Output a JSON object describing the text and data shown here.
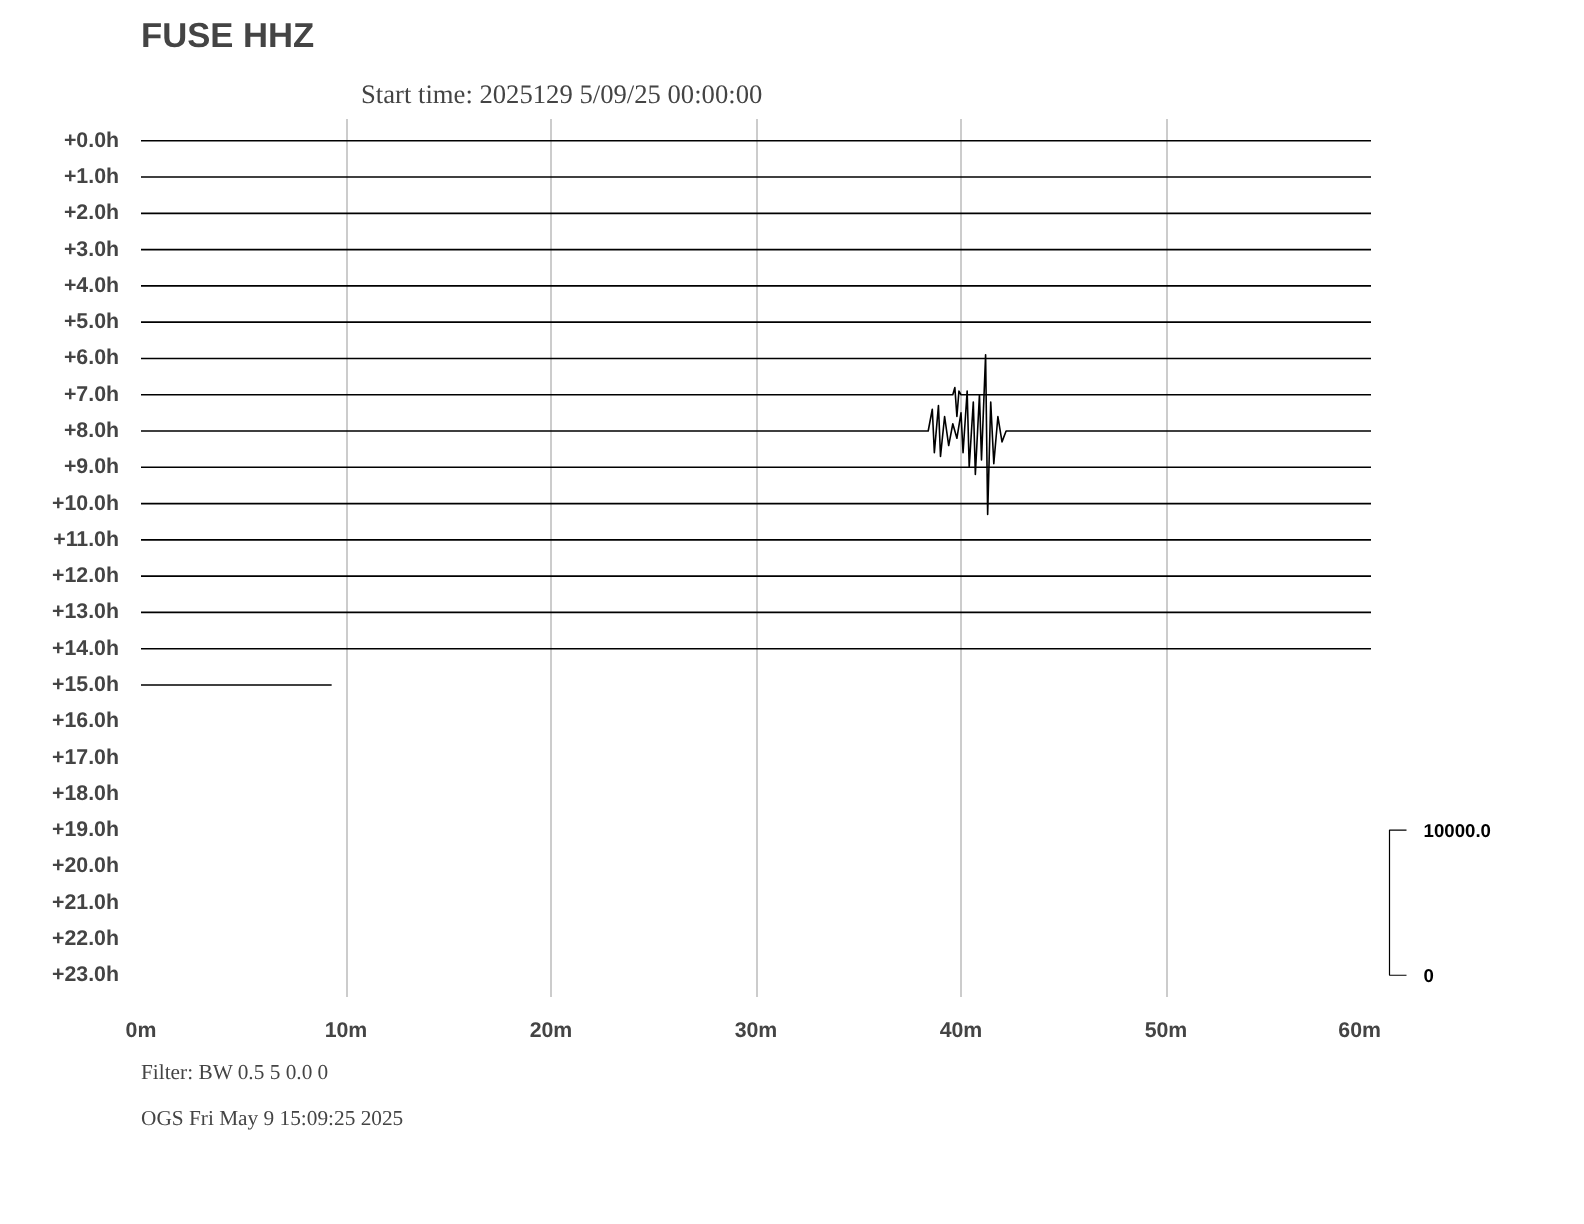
{
  "chart_data": {
    "type": "line",
    "title": "FUSE HHZ",
    "subtitle": "Start time: 2025129  5/09/25 00:00:00",
    "xlim": [
      0,
      60
    ],
    "xticks": [
      {
        "value": 0,
        "label": "0m"
      },
      {
        "value": 10,
        "label": "10m"
      },
      {
        "value": 20,
        "label": "20m"
      },
      {
        "value": 30,
        "label": "30m"
      },
      {
        "value": 40,
        "label": "40m"
      },
      {
        "value": 50,
        "label": "50m"
      },
      {
        "value": 60,
        "label": "60m"
      }
    ],
    "ylim": [
      23.6,
      -0.6
    ],
    "yticks": [
      {
        "value": 0,
        "label": "+0.0h"
      },
      {
        "value": 1,
        "label": "+1.0h"
      },
      {
        "value": 2,
        "label": "+2.0h"
      },
      {
        "value": 3,
        "label": "+3.0h"
      },
      {
        "value": 4,
        "label": "+4.0h"
      },
      {
        "value": 5,
        "label": "+5.0h"
      },
      {
        "value": 6,
        "label": "+6.0h"
      },
      {
        "value": 7,
        "label": "+7.0h"
      },
      {
        "value": 8,
        "label": "+8.0h"
      },
      {
        "value": 9,
        "label": "+9.0h"
      },
      {
        "value": 10,
        "label": "+10.0h"
      },
      {
        "value": 11,
        "label": "+11.0h"
      },
      {
        "value": 12,
        "label": "+12.0h"
      },
      {
        "value": 13,
        "label": "+13.0h"
      },
      {
        "value": 14,
        "label": "+14.0h"
      },
      {
        "value": 15,
        "label": "+15.0h"
      },
      {
        "value": 16,
        "label": "+16.0h"
      },
      {
        "value": 17,
        "label": "+17.0h"
      },
      {
        "value": 18,
        "label": "+18.0h"
      },
      {
        "value": 19,
        "label": "+19.0h"
      },
      {
        "value": 20,
        "label": "+20.0h"
      },
      {
        "value": 21,
        "label": "+21.0h"
      },
      {
        "value": 22,
        "label": "+22.0h"
      },
      {
        "value": 23,
        "label": "+23.0h"
      }
    ],
    "grid": "x",
    "marker": "none",
    "line_style": "solid",
    "series": [
      {
        "color": "#000000",
        "x": [
          0,
          60
        ],
        "values": [
          0,
          0
        ]
      },
      {
        "color": "#000000",
        "x": [
          0,
          60
        ],
        "values": [
          1,
          1
        ]
      },
      {
        "color": "#000000",
        "x": [
          0,
          60
        ],
        "values": [
          2,
          2
        ]
      },
      {
        "color": "#000000",
        "x": [
          0,
          60
        ],
        "values": [
          3,
          3
        ]
      },
      {
        "color": "#000000",
        "x": [
          0,
          60
        ],
        "values": [
          4,
          4
        ]
      },
      {
        "color": "#000000",
        "x": [
          0,
          60
        ],
        "values": [
          5,
          5
        ]
      },
      {
        "color": "#000000",
        "x": [
          0,
          60
        ],
        "values": [
          6,
          6
        ]
      },
      {
        "color": "#000000",
        "x": [
          0,
          39.6,
          39.7,
          39.8,
          39.9,
          40.0,
          60
        ],
        "values": [
          7,
          7,
          6.8,
          7.6,
          6.9,
          7,
          7
        ]
      },
      {
        "color": "#000000",
        "x": [
          0,
          38.4,
          38.6,
          38.7,
          38.9,
          39.0,
          39.2,
          39.4,
          39.6,
          39.8,
          40.0,
          40.1,
          40.3,
          40.4,
          40.6,
          40.7,
          40.9,
          41.0,
          41.2,
          41.3,
          41.45,
          41.6,
          41.8,
          42.0,
          42.2,
          60
        ],
        "values": [
          8,
          8,
          7.4,
          8.6,
          7.3,
          8.7,
          7.6,
          8.4,
          7.8,
          8.2,
          7.5,
          8.6,
          6.9,
          9.0,
          7.2,
          9.2,
          7.0,
          8.8,
          5.9,
          10.3,
          7.2,
          8.9,
          7.6,
          8.3,
          8,
          8
        ]
      },
      {
        "color": "#000000",
        "x": [
          0,
          60
        ],
        "values": [
          9,
          9
        ]
      },
      {
        "color": "#000000",
        "x": [
          0,
          60
        ],
        "values": [
          10,
          10
        ]
      },
      {
        "color": "#000000",
        "x": [
          0,
          60
        ],
        "values": [
          11,
          11
        ]
      },
      {
        "color": "#000000",
        "x": [
          0,
          60
        ],
        "values": [
          12,
          12
        ]
      },
      {
        "color": "#000000",
        "x": [
          0,
          60
        ],
        "values": [
          13,
          13
        ]
      },
      {
        "color": "#000000",
        "x": [
          0,
          60
        ],
        "values": [
          14,
          14
        ]
      },
      {
        "color": "#000000",
        "x": [
          0,
          9.3
        ],
        "values": [
          15,
          15
        ]
      }
    ],
    "annotations": [
      "10000.0",
      "0",
      "Filter: BW 0.5 5 0.0 0",
      "OGS    Fri May  9 15:09:25 2025"
    ]
  }
}
